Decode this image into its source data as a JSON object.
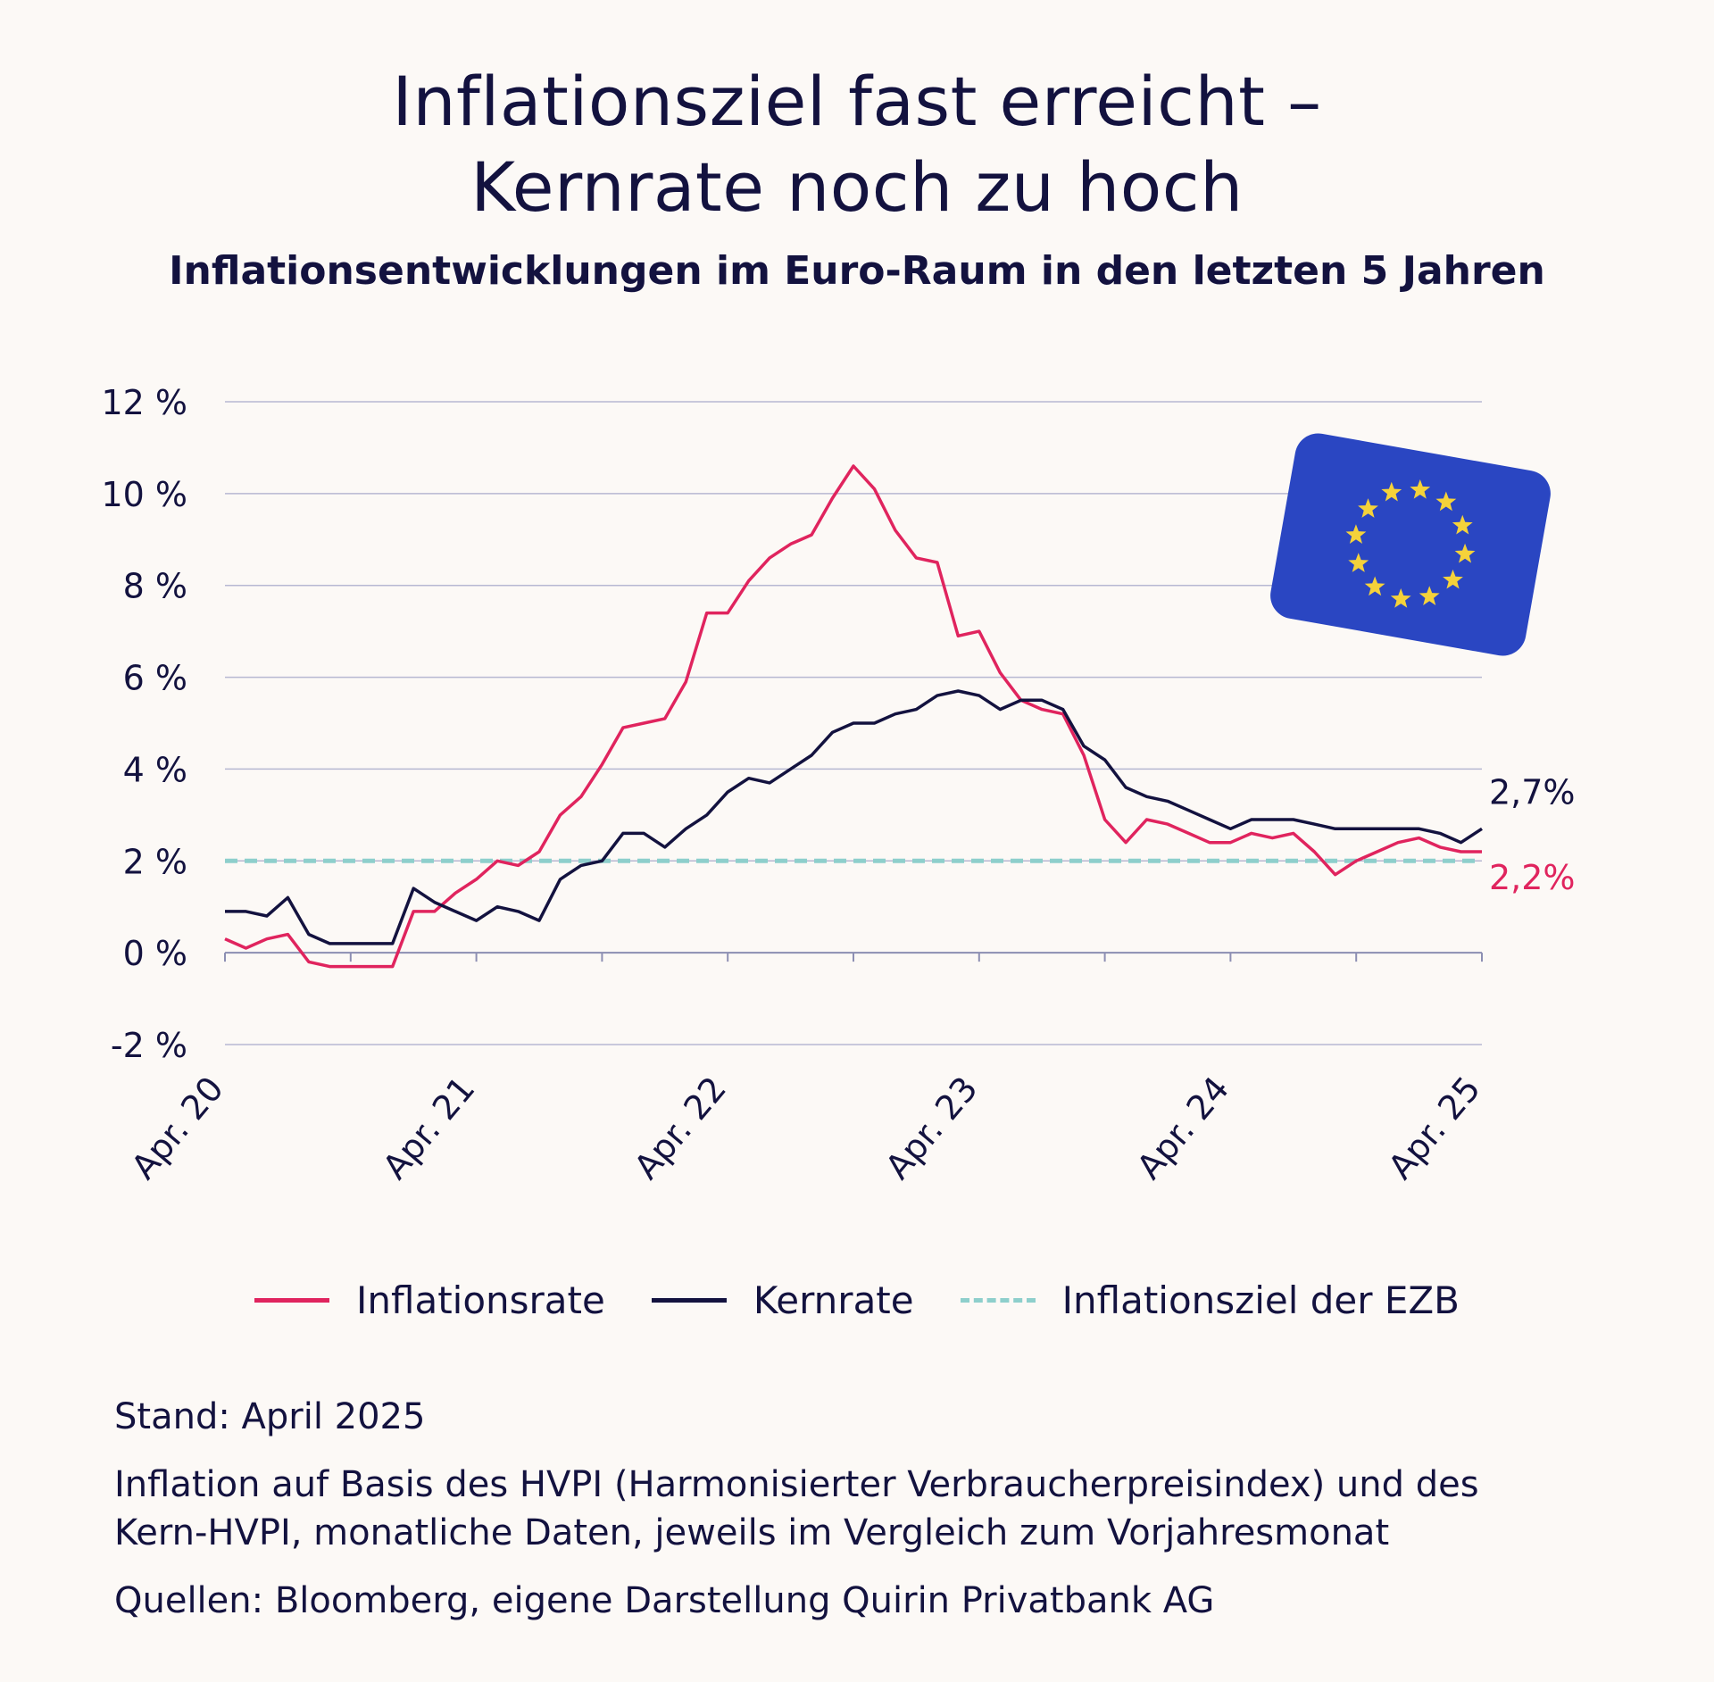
{
  "title_line1": "Inflationsziel fast erreicht –",
  "title_line2": "Kernrate noch zu hoch",
  "subtitle": "Inflationsentwicklungen im Euro-Raum in den letzten 5 Jahren",
  "footer": {
    "stand": "Stand: April 2025",
    "note_line1": "Inflation auf Basis des HVPI (Harmonisierter Verbraucherpreisindex) und des",
    "note_line2": "Kern-HVPI, monatliche Daten, jeweils im Vergleich zum Vorjahresmonat",
    "sources": "Quellen: Bloomberg, eigene Darstellung Quirin Privatbank AG"
  },
  "flag_icon": "eu-flag-icon",
  "chart_data": {
    "type": "line",
    "x_start": "Apr. 20",
    "x_ticks": [
      "Apr. 20",
      "Apr. 21",
      "Apr. 22",
      "Apr. 23",
      "Apr. 24",
      "Apr. 25"
    ],
    "y_ticks": [
      "12 %",
      "10 %",
      "8 %",
      "6 %",
      "4 %",
      "2 %",
      "0 %",
      "-2 %"
    ],
    "ylim": [
      -2,
      12
    ],
    "grid": true,
    "legend_position": "bottom",
    "series": [
      {
        "name": "Inflationsrate",
        "color": "#e0245e",
        "end_label": "2,2%",
        "values": [
          0.3,
          0.1,
          0.3,
          0.4,
          -0.2,
          -0.3,
          -0.3,
          -0.3,
          -0.3,
          0.9,
          0.9,
          1.3,
          1.6,
          2.0,
          1.9,
          2.2,
          3.0,
          3.4,
          4.1,
          4.9,
          5.0,
          5.1,
          5.9,
          7.4,
          7.4,
          8.1,
          8.6,
          8.9,
          9.1,
          9.9,
          10.6,
          10.1,
          9.2,
          8.6,
          8.5,
          6.9,
          7.0,
          6.1,
          5.5,
          5.3,
          5.2,
          4.3,
          2.9,
          2.4,
          2.9,
          2.8,
          2.6,
          2.4,
          2.4,
          2.6,
          2.5,
          2.6,
          2.2,
          1.7,
          2.0,
          2.2,
          2.4,
          2.5,
          2.3,
          2.2,
          2.2
        ]
      },
      {
        "name": "Kernrate",
        "color": "#13123f",
        "end_label": "2,7%",
        "values": [
          0.9,
          0.9,
          0.8,
          1.2,
          0.4,
          0.2,
          0.2,
          0.2,
          0.2,
          1.4,
          1.1,
          0.9,
          0.7,
          1.0,
          0.9,
          0.7,
          1.6,
          1.9,
          2.0,
          2.6,
          2.6,
          2.3,
          2.7,
          3.0,
          3.5,
          3.8,
          3.7,
          4.0,
          4.3,
          4.8,
          5.0,
          5.0,
          5.2,
          5.3,
          5.6,
          5.7,
          5.6,
          5.3,
          5.5,
          5.5,
          5.3,
          4.5,
          4.2,
          3.6,
          3.4,
          3.3,
          3.1,
          2.9,
          2.7,
          2.9,
          2.9,
          2.9,
          2.8,
          2.7,
          2.7,
          2.7,
          2.7,
          2.7,
          2.6,
          2.4,
          2.7
        ]
      },
      {
        "name": "Inflationsziel der EZB",
        "color": "#8ecfcc",
        "style": "dashed",
        "values": [
          2.0,
          2.0
        ]
      }
    ]
  }
}
